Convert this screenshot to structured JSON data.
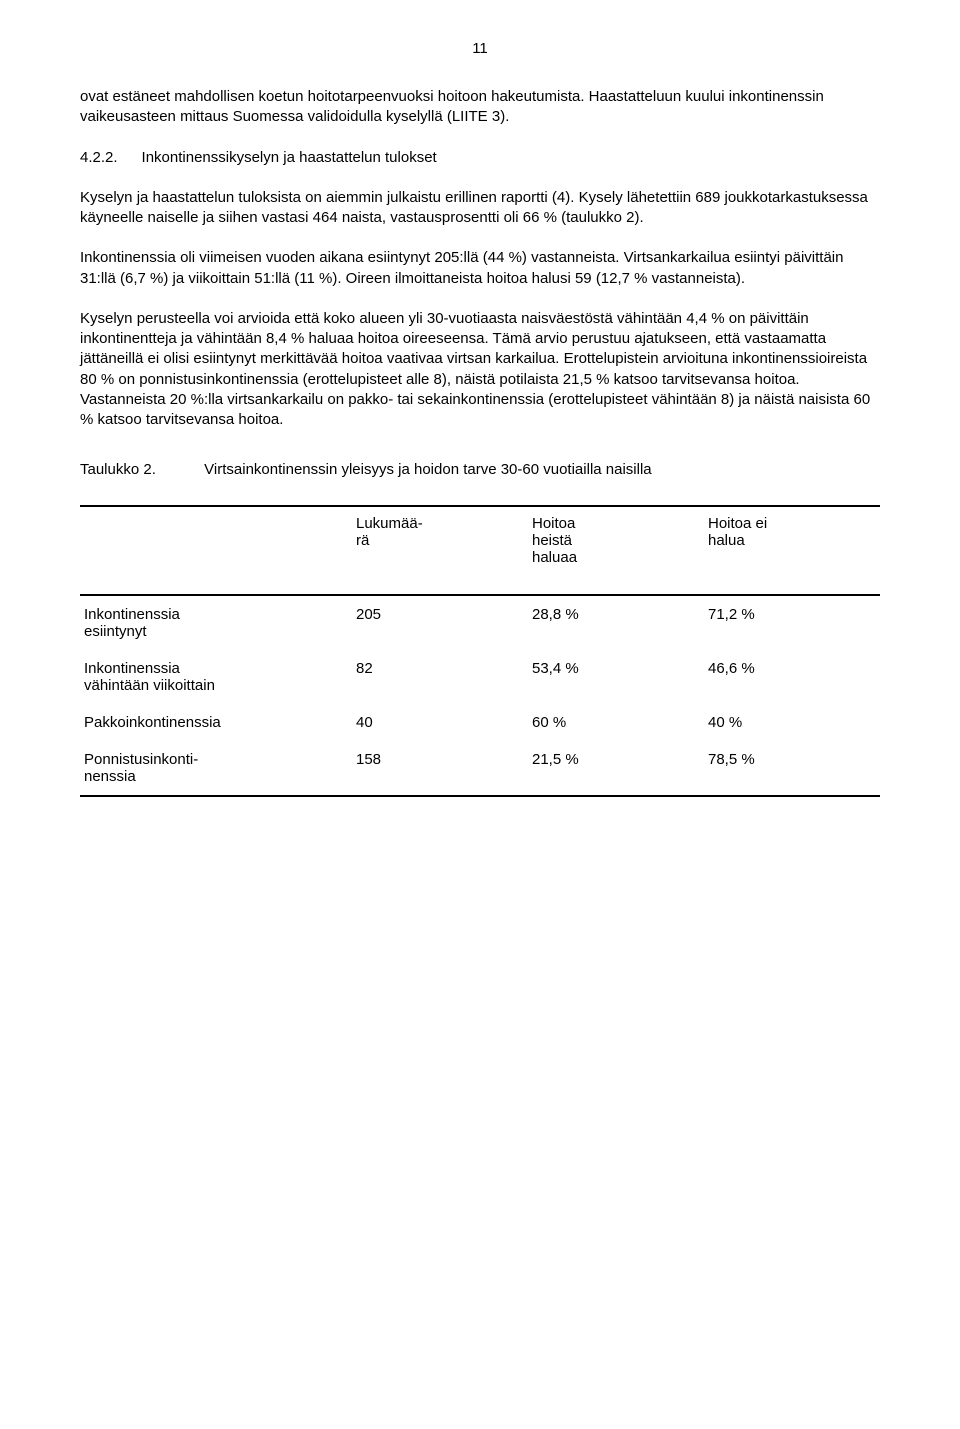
{
  "page_number": "11",
  "paragraphs": {
    "p1": "ovat estäneet mahdollisen koetun hoitotarpeenvuoksi hoitoon hakeutumista. Haastatteluun kuului inkontinenssin vaikeusasteen mittaus Suomessa validoidulla kyselyllä (LIITE 3).",
    "section_number": "4.2.2.",
    "section_title": "Inkontinenssikyselyn ja haastattelun tulokset",
    "p2": "Kyselyn ja haastattelun tuloksista on aiemmin julkaistu erillinen raportti (4). Kysely lähetettiin 689 joukkotarkastuksessa käyneelle naiselle ja siihen vastasi 464 naista, vastausprosentti oli 66 % (taulukko 2).",
    "p3": "Inkontinenssia oli viimeisen vuoden aikana esiintynyt 205:llä (44 %) vastanneista. Virtsankarkailua esiintyi päivittäin 31:llä (6,7 %) ja viikoittain 51:llä (11 %). Oireen ilmoittaneista hoitoa halusi 59 (12,7 % vastanneista).",
    "p4": "Kyselyn perusteella voi arvioida että koko alueen yli 30-vuotiaasta naisväestöstä vähintään 4,4 % on päivittäin inkontinentteja ja vähintään 8,4 % haluaa hoitoa oireeseensa. Tämä arvio perustuu ajatukseen, että vastaamatta jättäneillä ei olisi esiintynyt merkittävää hoitoa vaativaa virtsan karkailua. Erottelupistein arvioituna inkontinenssioireista 80 % on ponnistusinkontinenssia (erottelupisteet alle 8), näistä potilaista 21,5 % katsoo tarvitsevansa hoitoa. Vastanneista 20 %:lla virtsankarkailu on pakko- tai sekainkontinenssia (erottelupisteet vähintään 8) ja näistä naisista 60 % katsoo tarvitsevansa hoitoa."
  },
  "table": {
    "label": "Taulukko 2.",
    "caption": "Virtsainkontinenssin yleisyys ja hoidon tarve 30-60 vuotiailla naisilla",
    "headers": {
      "h0": "",
      "h1": "Lukumää-\nrä",
      "h2": "Hoitoa\nheistä\nhaluaa",
      "h3": "Hoitoa ei\nhalua"
    },
    "rows": [
      {
        "label": "Inkontinenssia\nesiintynyt",
        "a": "205",
        "b": "28,8 %",
        "c": "71,2 %"
      },
      {
        "label": "Inkontinenssia\nvähintään viikoittain",
        "a": "82",
        "b": "53,4 %",
        "c": "46,6 %"
      },
      {
        "label": "Pakkoinkontinenssia",
        "a": "40",
        "b": "60 %",
        "c": "40 %"
      },
      {
        "label": "Ponnistusinkonti-\nnenssia",
        "a": "158",
        "b": "21,5 %",
        "c": "78,5 %"
      }
    ]
  }
}
